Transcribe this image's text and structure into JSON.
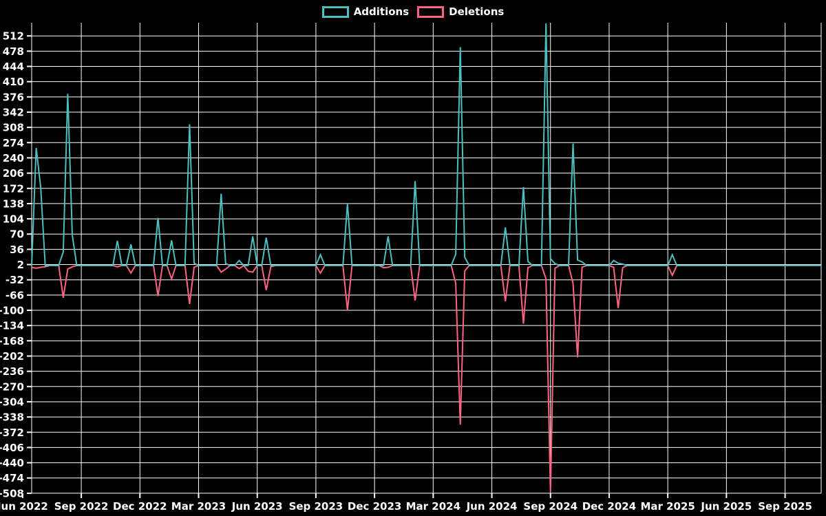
{
  "colors": {
    "background": "#000000",
    "grid": "#ffffff",
    "text": "#ffffff",
    "additions": "#4bc0c0",
    "deletions": "#ff6384"
  },
  "chart_data": {
    "type": "line",
    "title": "",
    "legend": {
      "position": "top",
      "items": [
        {
          "label": "Additions",
          "color": "#4bc0c0"
        },
        {
          "label": "Deletions",
          "color": "#ff6384"
        }
      ]
    },
    "x_axis": {
      "interval": "weekly",
      "ticks": [
        {
          "label": "Jun 2022",
          "week": -2
        },
        {
          "label": "Sep 2022",
          "week": 11
        },
        {
          "label": "Dec 2022",
          "week": 24
        },
        {
          "label": "Mar 2023",
          "week": 37
        },
        {
          "label": "Jun 2023",
          "week": 50
        },
        {
          "label": "Sep 2023",
          "week": 63
        },
        {
          "label": "Dec 2023",
          "week": 76
        },
        {
          "label": "Mar 2024",
          "week": 89
        },
        {
          "label": "Jun 2024",
          "week": 102
        },
        {
          "label": "Sep 2024",
          "week": 115
        },
        {
          "label": "Dec 2024",
          "week": 128
        },
        {
          "label": "Mar 2025",
          "week": 141
        },
        {
          "label": "Jun 2025",
          "week": 154
        },
        {
          "label": "Sep 2025",
          "week": 167
        }
      ]
    },
    "y_axis": {
      "tick_labels": [
        512,
        478,
        444,
        410,
        376,
        342,
        308,
        274,
        240,
        206,
        172,
        138,
        104,
        70,
        36,
        2,
        -32,
        -66,
        -100,
        -134,
        -168,
        -202,
        -236,
        -270,
        -304,
        -338,
        -372,
        -406,
        -440,
        -474,
        -508
      ],
      "tick_step": 34,
      "visible_max": 512,
      "visible_min": -508
    },
    "series": {
      "names": [
        "Additions",
        "Deletions"
      ],
      "n_points": 176,
      "baseline": 0,
      "points": [
        {
          "week": 0,
          "additions": 0,
          "deletions": -4
        },
        {
          "week": 1,
          "additions": 262,
          "deletions": -6
        },
        {
          "week": 2,
          "additions": 175,
          "deletions": -4
        },
        {
          "week": 3,
          "additions": 0,
          "deletions": -3
        },
        {
          "week": 7,
          "additions": 30,
          "deletions": -72
        },
        {
          "week": 8,
          "additions": 383,
          "deletions": -8
        },
        {
          "week": 9,
          "additions": 68,
          "deletions": -3
        },
        {
          "week": 19,
          "additions": 55,
          "deletions": -3
        },
        {
          "week": 22,
          "additions": 47,
          "deletions": -17
        },
        {
          "week": 28,
          "additions": 106,
          "deletions": -68
        },
        {
          "week": 31,
          "additions": 56,
          "deletions": -30
        },
        {
          "week": 35,
          "additions": 315,
          "deletions": -86
        },
        {
          "week": 36,
          "additions": 5,
          "deletions": -4
        },
        {
          "week": 42,
          "additions": 160,
          "deletions": -15
        },
        {
          "week": 43,
          "additions": 4,
          "deletions": -8
        },
        {
          "week": 46,
          "additions": 11,
          "deletions": -7
        },
        {
          "week": 48,
          "additions": 0,
          "deletions": -13
        },
        {
          "week": 49,
          "additions": 65,
          "deletions": -15
        },
        {
          "week": 52,
          "additions": 62,
          "deletions": -55
        },
        {
          "week": 53,
          "additions": 0,
          "deletions": -3
        },
        {
          "week": 64,
          "additions": 24,
          "deletions": -17
        },
        {
          "week": 70,
          "additions": 138,
          "deletions": -100
        },
        {
          "week": 78,
          "additions": 0,
          "deletions": -5
        },
        {
          "week": 79,
          "additions": 65,
          "deletions": -4
        },
        {
          "week": 85,
          "additions": 188,
          "deletions": -78
        },
        {
          "week": 94,
          "additions": 25,
          "deletions": -40
        },
        {
          "week": 95,
          "additions": 487,
          "deletions": -355
        },
        {
          "week": 96,
          "additions": 18,
          "deletions": -12
        },
        {
          "week": 105,
          "additions": 85,
          "deletions": -80
        },
        {
          "week": 109,
          "additions": 175,
          "deletions": -130
        },
        {
          "week": 110,
          "additions": 9,
          "deletions": -5
        },
        {
          "week": 114,
          "additions": 540,
          "deletions": -30
        },
        {
          "week": 115,
          "additions": 15,
          "deletions": -505
        },
        {
          "week": 116,
          "additions": 4,
          "deletions": -6
        },
        {
          "week": 120,
          "additions": 272,
          "deletions": -40
        },
        {
          "week": 121,
          "additions": 12,
          "deletions": -205
        },
        {
          "week": 122,
          "additions": 8,
          "deletions": -4
        },
        {
          "week": 129,
          "additions": 11,
          "deletions": -4
        },
        {
          "week": 130,
          "additions": 5,
          "deletions": -95
        },
        {
          "week": 131,
          "additions": 3,
          "deletions": -5
        },
        {
          "week": 142,
          "additions": 24,
          "deletions": -22
        }
      ]
    }
  }
}
